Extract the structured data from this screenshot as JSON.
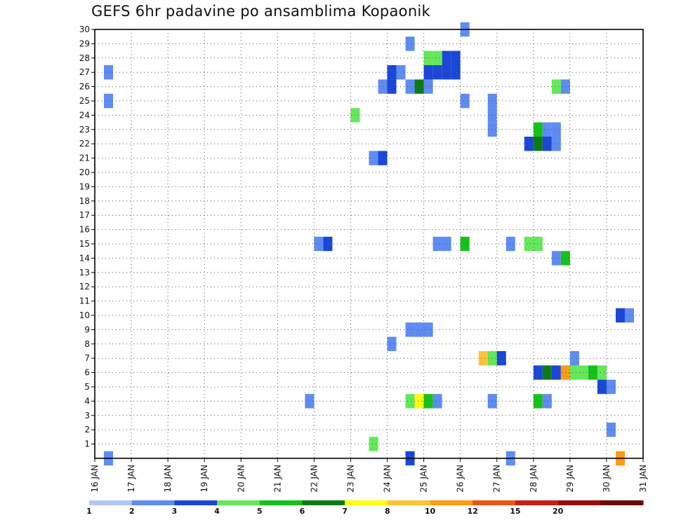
{
  "chart_data": {
    "type": "heatmap",
    "title": "GEFS 6hr padavine po ansamblima Kopaonik",
    "ylim": [
      1,
      30
    ],
    "y_ticks": [
      "1",
      "2",
      "3",
      "4",
      "5",
      "6",
      "7",
      "8",
      "9",
      "10",
      "11",
      "12",
      "13",
      "14",
      "15",
      "16",
      "17",
      "18",
      "19",
      "20",
      "21",
      "22",
      "23",
      "24",
      "25",
      "26",
      "27",
      "28",
      "29",
      "30"
    ],
    "x_ticks": [
      "16 JAN",
      "17 JAN",
      "18 JAN",
      "19 JAN",
      "20 JAN",
      "21 JAN",
      "22 JAN",
      "23 JAN",
      "24 JAN",
      "25 JAN",
      "26 JAN",
      "27 JAN",
      "28 JAN",
      "29 JAN",
      "30 JAN",
      "31 JAN"
    ],
    "grid": true,
    "legend_position": "bottom",
    "legend_levels": [
      "1",
      "2",
      "3",
      "4",
      "5",
      "6",
      "7",
      "8",
      "10",
      "12",
      "15",
      "20"
    ],
    "legend_colors": [
      "#b2c7f7",
      "#5e8cf2",
      "#1a47d8",
      "#63e85a",
      "#16c21a",
      "#0c7a16",
      "#ffff12",
      "#ffc236",
      "#ff9a12",
      "#ee5414",
      "#c81e14",
      "#9a0c0c",
      "#6e0808"
    ],
    "cells": [
      {
        "x": 16.25,
        "member": 0,
        "level": 1
      },
      {
        "x": 16.25,
        "member": 25,
        "level": 1
      },
      {
        "x": 16.25,
        "member": 27,
        "level": 1
      },
      {
        "x": 21.75,
        "member": 4,
        "level": 1
      },
      {
        "x": 22.0,
        "member": 15,
        "level": 1
      },
      {
        "x": 22.25,
        "member": 15,
        "level": 2
      },
      {
        "x": 23.0,
        "member": 24,
        "level": 3
      },
      {
        "x": 23.5,
        "member": 1,
        "level": 3
      },
      {
        "x": 23.5,
        "member": 21,
        "level": 1
      },
      {
        "x": 23.75,
        "member": 21,
        "level": 2
      },
      {
        "x": 23.75,
        "member": 26,
        "level": 1
      },
      {
        "x": 24.0,
        "member": 26,
        "level": 2
      },
      {
        "x": 24.0,
        "member": 27,
        "level": 2
      },
      {
        "x": 24.0,
        "member": 8,
        "level": 1
      },
      {
        "x": 24.25,
        "member": 27,
        "level": 1
      },
      {
        "x": 24.5,
        "member": 0,
        "level": 2
      },
      {
        "x": 24.5,
        "member": 4,
        "level": 3
      },
      {
        "x": 24.5,
        "member": 9,
        "level": 1
      },
      {
        "x": 24.5,
        "member": 26,
        "level": 1
      },
      {
        "x": 24.5,
        "member": 29,
        "level": 1
      },
      {
        "x": 24.75,
        "member": 4,
        "level": 6
      },
      {
        "x": 24.75,
        "member": 9,
        "level": 1
      },
      {
        "x": 24.75,
        "member": 26,
        "level": 5
      },
      {
        "x": 25.0,
        "member": 4,
        "level": 4
      },
      {
        "x": 25.0,
        "member": 9,
        "level": 1
      },
      {
        "x": 25.0,
        "member": 26,
        "level": 1
      },
      {
        "x": 25.0,
        "member": 27,
        "level": 2
      },
      {
        "x": 25.0,
        "member": 28,
        "level": 3
      },
      {
        "x": 25.25,
        "member": 4,
        "level": 1
      },
      {
        "x": 25.25,
        "member": 15,
        "level": 1
      },
      {
        "x": 25.25,
        "member": 27,
        "level": 2
      },
      {
        "x": 25.25,
        "member": 28,
        "level": 3
      },
      {
        "x": 25.5,
        "member": 15,
        "level": 1
      },
      {
        "x": 25.5,
        "member": 27,
        "level": 2
      },
      {
        "x": 25.5,
        "member": 28,
        "level": 2
      },
      {
        "x": 25.75,
        "member": 27,
        "level": 2
      },
      {
        "x": 25.75,
        "member": 28,
        "level": 2
      },
      {
        "x": 26.0,
        "member": 15,
        "level": 4
      },
      {
        "x": 26.0,
        "member": 25,
        "level": 1
      },
      {
        "x": 26.0,
        "member": 30,
        "level": 1
      },
      {
        "x": 26.5,
        "member": 7,
        "level": 7
      },
      {
        "x": 26.75,
        "member": 7,
        "level": 3
      },
      {
        "x": 26.75,
        "member": 4,
        "level": 1
      },
      {
        "x": 26.75,
        "member": 23,
        "level": 1
      },
      {
        "x": 26.75,
        "member": 24,
        "level": 1
      },
      {
        "x": 26.75,
        "member": 25,
        "level": 1
      },
      {
        "x": 27.0,
        "member": 7,
        "level": 2
      },
      {
        "x": 27.25,
        "member": 0,
        "level": 1
      },
      {
        "x": 27.25,
        "member": 15,
        "level": 1
      },
      {
        "x": 27.75,
        "member": 15,
        "level": 3
      },
      {
        "x": 27.75,
        "member": 22,
        "level": 2
      },
      {
        "x": 28.0,
        "member": 15,
        "level": 3
      },
      {
        "x": 28.0,
        "member": 6,
        "level": 2
      },
      {
        "x": 28.0,
        "member": 4,
        "level": 4
      },
      {
        "x": 28.0,
        "member": 22,
        "level": 5
      },
      {
        "x": 28.0,
        "member": 23,
        "level": 4
      },
      {
        "x": 28.25,
        "member": 6,
        "level": 5
      },
      {
        "x": 28.25,
        "member": 4,
        "level": 1
      },
      {
        "x": 28.25,
        "member": 22,
        "level": 2
      },
      {
        "x": 28.25,
        "member": 23,
        "level": 1
      },
      {
        "x": 28.5,
        "member": 6,
        "level": 2
      },
      {
        "x": 28.5,
        "member": 14,
        "level": 1
      },
      {
        "x": 28.5,
        "member": 22,
        "level": 1
      },
      {
        "x": 28.5,
        "member": 23,
        "level": 1
      },
      {
        "x": 28.5,
        "member": 26,
        "level": 3
      },
      {
        "x": 28.75,
        "member": 6,
        "level": 8
      },
      {
        "x": 28.75,
        "member": 14,
        "level": 4
      },
      {
        "x": 28.75,
        "member": 26,
        "level": 1
      },
      {
        "x": 29.0,
        "member": 6,
        "level": 3
      },
      {
        "x": 29.0,
        "member": 7,
        "level": 1
      },
      {
        "x": 29.25,
        "member": 6,
        "level": 3
      },
      {
        "x": 29.5,
        "member": 6,
        "level": 4
      },
      {
        "x": 29.75,
        "member": 6,
        "level": 3
      },
      {
        "x": 29.75,
        "member": 5,
        "level": 2
      },
      {
        "x": 30.0,
        "member": 5,
        "level": 1
      },
      {
        "x": 30.0,
        "member": 2,
        "level": 1
      },
      {
        "x": 30.25,
        "member": 0,
        "level": 8
      },
      {
        "x": 30.25,
        "member": 10,
        "level": 2
      },
      {
        "x": 30.5,
        "member": 10,
        "level": 1
      }
    ]
  }
}
